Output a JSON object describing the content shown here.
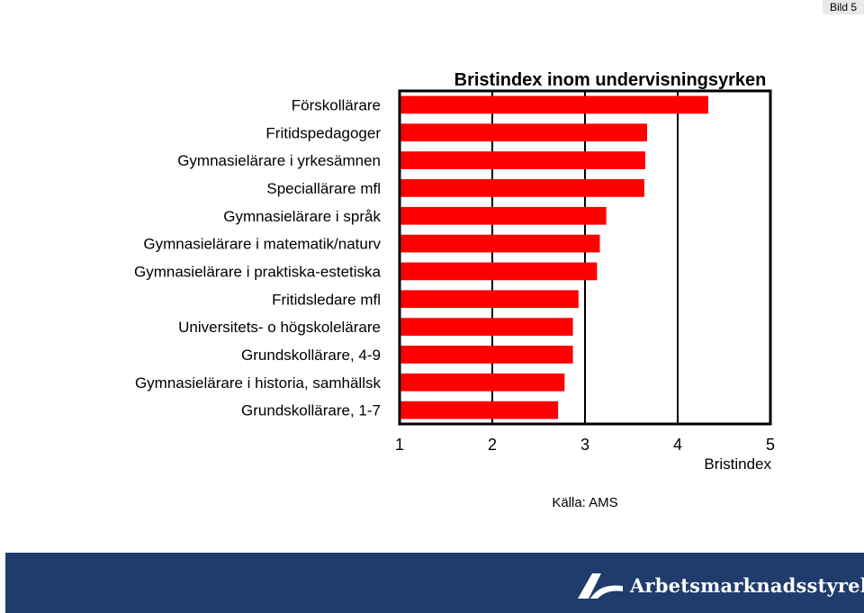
{
  "slide_label": "Bild 5",
  "source": "Källa: AMS",
  "logo_text": "Arbetsmarknadsstyrelsen",
  "chart_data": {
    "type": "bar",
    "orientation": "horizontal",
    "title": "Bristindex inom undervisningsyrken",
    "xlabel": "Bristindex",
    "ylabel": "",
    "xlim": [
      1,
      5
    ],
    "xticks": [
      1,
      2,
      3,
      4,
      5
    ],
    "grid": "vertical",
    "bar_color": "#ff0000",
    "categories": [
      "Förskollärare",
      "Fritidspedagoger",
      "Gymnasielärare i yrkesämnen",
      "Speciallärare mfl",
      "Gymnasielärare i språk",
      "Gymnasielärare i matematik/naturv",
      "Gymnasielärare i praktiska-estetiska",
      "Fritidsledare mfl",
      "Universitets- o högskolelärare",
      "Grundskollärare, 4-9",
      "Gymnasielärare i historia, samhällsk",
      "Grundskollärare, 1-7"
    ],
    "values": [
      4.33,
      3.67,
      3.65,
      3.64,
      3.23,
      3.16,
      3.13,
      2.93,
      2.87,
      2.87,
      2.78,
      2.71
    ]
  }
}
